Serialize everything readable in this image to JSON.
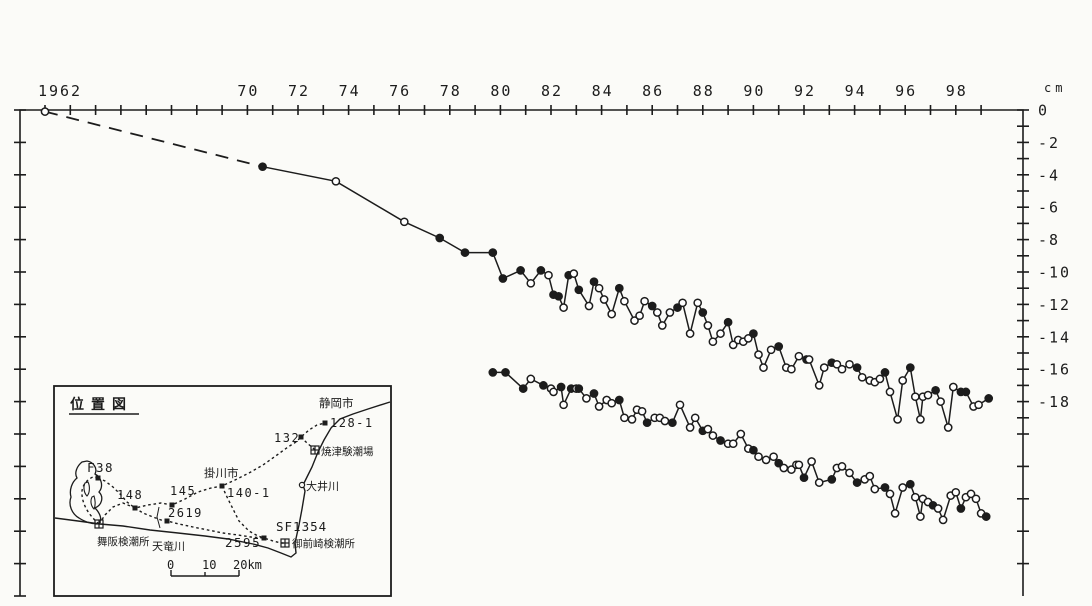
{
  "style": {
    "ink": "#1c1c1c",
    "paper": "#fbfbf8"
  },
  "chart_data": {
    "type": "line",
    "title": "",
    "x_axis": {
      "range": [
        1962,
        2000
      ],
      "tick_every_years": 1,
      "labels": [
        {
          "year": 1962,
          "text": "1962"
        },
        {
          "year": 1970,
          "text": "70"
        },
        {
          "year": 1972,
          "text": "72"
        },
        {
          "year": 1974,
          "text": "74"
        },
        {
          "year": 1976,
          "text": "76"
        },
        {
          "year": 1978,
          "text": "78"
        },
        {
          "year": 1980,
          "text": "80"
        },
        {
          "year": 1982,
          "text": "82"
        },
        {
          "year": 1984,
          "text": "84"
        },
        {
          "year": 1986,
          "text": "86"
        },
        {
          "year": 1988,
          "text": "88"
        },
        {
          "year": 1990,
          "text": "90"
        },
        {
          "year": 1992,
          "text": "92"
        },
        {
          "year": 1994,
          "text": "94"
        },
        {
          "year": 1996,
          "text": "96"
        },
        {
          "year": 1998,
          "text": "98"
        }
      ]
    },
    "y_axis": {
      "unit": "cm",
      "range": [
        0,
        -30
      ],
      "labels": [
        {
          "value": 0,
          "text": "0"
        },
        {
          "value": -2,
          "text": "-2"
        },
        {
          "value": -4,
          "text": "-4"
        },
        {
          "value": -6,
          "text": "-6"
        },
        {
          "value": -8,
          "text": "-8"
        },
        {
          "value": -10,
          "text": "-10"
        },
        {
          "value": -12,
          "text": "-12"
        },
        {
          "value": -14,
          "text": "-14"
        },
        {
          "value": -16,
          "text": "-16"
        },
        {
          "value": -18,
          "text": "-18"
        }
      ]
    },
    "legend": "none",
    "grid": false,
    "marker_legend": {
      "f": "filled circle",
      "o": "open circle"
    },
    "series": [
      {
        "name": "upper-leveling-series",
        "dash_until_index": 1,
        "points": [
          [
            1962.0,
            -0.1,
            "o"
          ],
          [
            1970.6,
            -3.5,
            "f"
          ],
          [
            1973.5,
            -4.4,
            "o"
          ],
          [
            1976.2,
            -6.9,
            "o"
          ],
          [
            1977.6,
            -7.9,
            "f"
          ],
          [
            1978.6,
            -8.8,
            "f"
          ],
          [
            1979.7,
            -8.8,
            "f"
          ],
          [
            1980.1,
            -10.4,
            "f"
          ],
          [
            1980.8,
            -9.9,
            "f"
          ],
          [
            1981.2,
            -10.7,
            "o"
          ],
          [
            1981.6,
            -9.9,
            "f"
          ],
          [
            1981.9,
            -10.2,
            "o"
          ],
          [
            1982.1,
            -11.4,
            "f"
          ],
          [
            1982.3,
            -11.5,
            "f"
          ],
          [
            1982.5,
            -12.2,
            "o"
          ],
          [
            1982.7,
            -10.2,
            "f"
          ],
          [
            1982.9,
            -10.1,
            "o"
          ],
          [
            1983.1,
            -11.1,
            "f"
          ],
          [
            1983.5,
            -12.1,
            "o"
          ],
          [
            1983.7,
            -10.6,
            "f"
          ],
          [
            1983.9,
            -11.0,
            "o"
          ],
          [
            1984.1,
            -11.7,
            "o"
          ],
          [
            1984.4,
            -12.6,
            "o"
          ],
          [
            1984.7,
            -11.0,
            "f"
          ],
          [
            1984.9,
            -11.8,
            "o"
          ],
          [
            1985.3,
            -13.0,
            "o"
          ],
          [
            1985.5,
            -12.7,
            "o"
          ],
          [
            1985.7,
            -11.8,
            "o"
          ],
          [
            1986.0,
            -12.1,
            "f"
          ],
          [
            1986.2,
            -12.5,
            "o"
          ],
          [
            1986.4,
            -13.3,
            "o"
          ],
          [
            1986.7,
            -12.5,
            "o"
          ],
          [
            1987.0,
            -12.2,
            "f"
          ],
          [
            1987.2,
            -11.9,
            "o"
          ],
          [
            1987.5,
            -13.8,
            "o"
          ],
          [
            1987.8,
            -11.9,
            "o"
          ],
          [
            1988.0,
            -12.5,
            "f"
          ],
          [
            1988.2,
            -13.3,
            "o"
          ],
          [
            1988.4,
            -14.3,
            "o"
          ],
          [
            1988.7,
            -13.8,
            "o"
          ],
          [
            1989.0,
            -13.1,
            "f"
          ],
          [
            1989.2,
            -14.5,
            "o"
          ],
          [
            1989.4,
            -14.2,
            "o"
          ],
          [
            1989.6,
            -14.3,
            "o"
          ],
          [
            1989.8,
            -14.1,
            "o"
          ],
          [
            1990.0,
            -13.8,
            "f"
          ],
          [
            1990.2,
            -15.1,
            "o"
          ],
          [
            1990.4,
            -15.9,
            "o"
          ],
          [
            1990.7,
            -14.8,
            "o"
          ],
          [
            1991.0,
            -14.6,
            "f"
          ],
          [
            1991.3,
            -15.9,
            "o"
          ],
          [
            1991.5,
            -16.0,
            "o"
          ],
          [
            1991.8,
            -15.2,
            "o"
          ],
          [
            1992.1,
            -15.4,
            "f"
          ],
          [
            1992.2,
            -15.4,
            "o"
          ],
          [
            1992.6,
            -17.0,
            "o"
          ],
          [
            1992.8,
            -15.9,
            "o"
          ],
          [
            1993.1,
            -15.6,
            "f"
          ],
          [
            1993.3,
            -15.7,
            "o"
          ],
          [
            1993.5,
            -16.0,
            "o"
          ],
          [
            1993.8,
            -15.7,
            "o"
          ],
          [
            1994.1,
            -15.9,
            "f"
          ],
          [
            1994.3,
            -16.5,
            "o"
          ],
          [
            1994.6,
            -16.7,
            "o"
          ],
          [
            1994.8,
            -16.8,
            "o"
          ],
          [
            1995.0,
            -16.6,
            "o"
          ],
          [
            1995.2,
            -16.2,
            "f"
          ],
          [
            1995.4,
            -17.4,
            "o"
          ],
          [
            1995.7,
            -19.1,
            "o"
          ],
          [
            1995.9,
            -16.7,
            "o"
          ],
          [
            1996.2,
            -15.9,
            "f"
          ],
          [
            1996.4,
            -17.7,
            "o"
          ],
          [
            1996.6,
            -19.1,
            "o"
          ],
          [
            1996.7,
            -17.7,
            "o"
          ],
          [
            1996.9,
            -17.6,
            "o"
          ],
          [
            1997.2,
            -17.3,
            "f"
          ],
          [
            1997.4,
            -18.0,
            "o"
          ],
          [
            1997.7,
            -19.6,
            "o"
          ],
          [
            1997.9,
            -17.1,
            "o"
          ],
          [
            1998.2,
            -17.4,
            "f"
          ],
          [
            1998.4,
            -17.4,
            "f"
          ],
          [
            1998.7,
            -18.3,
            "o"
          ],
          [
            1998.9,
            -18.2,
            "o"
          ],
          [
            1999.3,
            -17.8,
            "f"
          ]
        ]
      },
      {
        "name": "lower-leveling-series",
        "dash_until_index": 0,
        "points": [
          [
            1979.7,
            -16.2,
            "f"
          ],
          [
            1980.2,
            -16.2,
            "f"
          ],
          [
            1980.9,
            -17.2,
            "f"
          ],
          [
            1981.2,
            -16.6,
            "o"
          ],
          [
            1981.7,
            -17.0,
            "f"
          ],
          [
            1982.0,
            -17.2,
            "o"
          ],
          [
            1982.1,
            -17.4,
            "o"
          ],
          [
            1982.4,
            -17.1,
            "f"
          ],
          [
            1982.5,
            -18.2,
            "o"
          ],
          [
            1982.8,
            -17.2,
            "f"
          ],
          [
            1983.0,
            -17.2,
            "o"
          ],
          [
            1983.1,
            -17.2,
            "f"
          ],
          [
            1983.4,
            -17.8,
            "o"
          ],
          [
            1983.7,
            -17.5,
            "f"
          ],
          [
            1983.9,
            -18.3,
            "o"
          ],
          [
            1984.2,
            -17.9,
            "o"
          ],
          [
            1984.4,
            -18.1,
            "o"
          ],
          [
            1984.7,
            -17.9,
            "f"
          ],
          [
            1984.9,
            -19.0,
            "o"
          ],
          [
            1985.2,
            -19.1,
            "o"
          ],
          [
            1985.4,
            -18.5,
            "o"
          ],
          [
            1985.6,
            -18.6,
            "o"
          ],
          [
            1985.8,
            -19.3,
            "f"
          ],
          [
            1986.1,
            -19.0,
            "o"
          ],
          [
            1986.3,
            -19.0,
            "o"
          ],
          [
            1986.5,
            -19.2,
            "o"
          ],
          [
            1986.8,
            -19.3,
            "f"
          ],
          [
            1987.1,
            -18.2,
            "o"
          ],
          [
            1987.5,
            -19.6,
            "o"
          ],
          [
            1987.7,
            -19.0,
            "o"
          ],
          [
            1988.0,
            -19.8,
            "f"
          ],
          [
            1988.2,
            -19.7,
            "o"
          ],
          [
            1988.4,
            -20.1,
            "o"
          ],
          [
            1988.7,
            -20.4,
            "f"
          ],
          [
            1989.0,
            -20.6,
            "o"
          ],
          [
            1989.2,
            -20.6,
            "o"
          ],
          [
            1989.5,
            -20.0,
            "o"
          ],
          [
            1989.8,
            -20.9,
            "o"
          ],
          [
            1990.0,
            -21.0,
            "f"
          ],
          [
            1990.2,
            -21.4,
            "o"
          ],
          [
            1990.5,
            -21.6,
            "o"
          ],
          [
            1990.8,
            -21.4,
            "o"
          ],
          [
            1991.0,
            -21.8,
            "f"
          ],
          [
            1991.2,
            -22.1,
            "o"
          ],
          [
            1991.5,
            -22.2,
            "o"
          ],
          [
            1991.7,
            -21.9,
            "o"
          ],
          [
            1991.8,
            -21.9,
            "o"
          ],
          [
            1992.0,
            -22.7,
            "f"
          ],
          [
            1992.3,
            -21.7,
            "o"
          ],
          [
            1992.6,
            -23.0,
            "o"
          ],
          [
            1993.1,
            -22.8,
            "f"
          ],
          [
            1993.3,
            -22.1,
            "o"
          ],
          [
            1993.5,
            -22.0,
            "o"
          ],
          [
            1993.8,
            -22.4,
            "o"
          ],
          [
            1994.1,
            -23.0,
            "f"
          ],
          [
            1994.4,
            -22.8,
            "o"
          ],
          [
            1994.6,
            -22.6,
            "o"
          ],
          [
            1994.8,
            -23.4,
            "o"
          ],
          [
            1995.2,
            -23.3,
            "f"
          ],
          [
            1995.4,
            -23.7,
            "o"
          ],
          [
            1995.6,
            -24.9,
            "o"
          ],
          [
            1995.9,
            -23.3,
            "o"
          ],
          [
            1996.2,
            -23.1,
            "f"
          ],
          [
            1996.4,
            -23.9,
            "o"
          ],
          [
            1996.6,
            -25.1,
            "o"
          ],
          [
            1996.7,
            -24.0,
            "o"
          ],
          [
            1996.9,
            -24.2,
            "o"
          ],
          [
            1997.1,
            -24.4,
            "f"
          ],
          [
            1997.3,
            -24.6,
            "o"
          ],
          [
            1997.5,
            -25.3,
            "o"
          ],
          [
            1997.8,
            -23.8,
            "o"
          ],
          [
            1998.0,
            -23.6,
            "o"
          ],
          [
            1998.2,
            -24.6,
            "f"
          ],
          [
            1998.4,
            -23.9,
            "o"
          ],
          [
            1998.6,
            -23.7,
            "o"
          ],
          [
            1998.8,
            -24.0,
            "o"
          ],
          [
            1999.0,
            -24.9,
            "o"
          ],
          [
            1999.2,
            -25.1,
            "f"
          ]
        ]
      }
    ]
  },
  "map": {
    "title": "位置図",
    "labels": {
      "shizuoka": "静岡市",
      "bm128": "128-1",
      "bm132": "132",
      "yaizu": "焼津験潮場",
      "kakegawa": "掛川市",
      "bm140": "140-1",
      "oigawa": "大井川",
      "f38": "F38",
      "bm148": "148",
      "bm145": "145",
      "bm2619": "2619",
      "maisaka": "舞阪検潮所",
      "tenryu": "天竜川",
      "bm2595": "2595",
      "sf1354": "SF1354",
      "omaezaki": "御前崎検潮所"
    },
    "scale": {
      "zero": "0",
      "ten": "10",
      "twenty": "20km"
    }
  }
}
